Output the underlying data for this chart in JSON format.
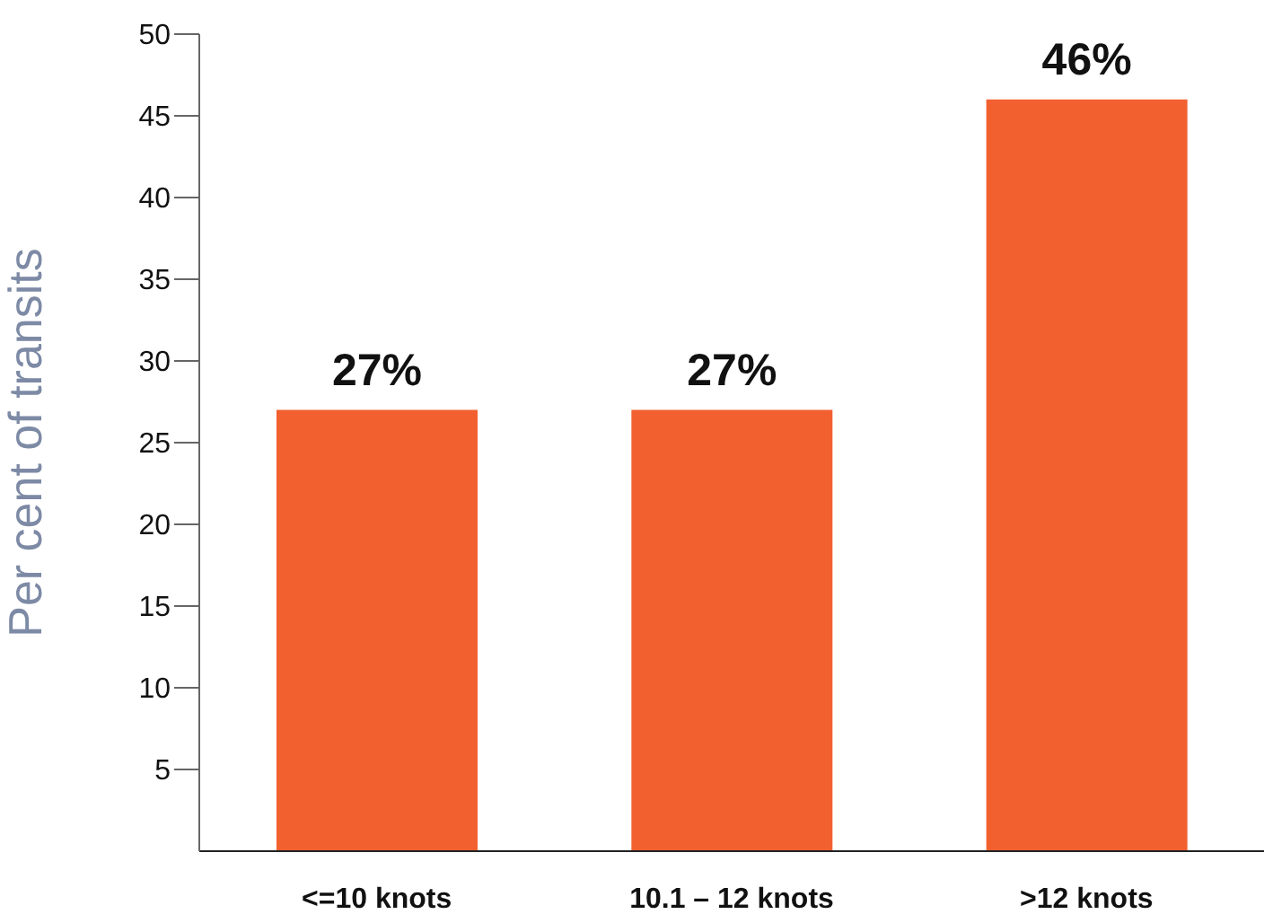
{
  "chart_data": {
    "type": "bar",
    "ylabel": "Per cent of transits",
    "categories": [
      "<=10 knots",
      "10.1 – 12 knots",
      ">12 knots"
    ],
    "values": [
      27,
      27,
      46
    ],
    "color": "#f26030",
    "value_labels": [
      "27%",
      "27%",
      "46%"
    ],
    "ylim": [
      0,
      50
    ],
    "yticks": [
      5,
      10,
      15,
      20,
      25,
      30,
      35,
      40,
      45,
      50
    ],
    "grid": false,
    "legend": false
  }
}
